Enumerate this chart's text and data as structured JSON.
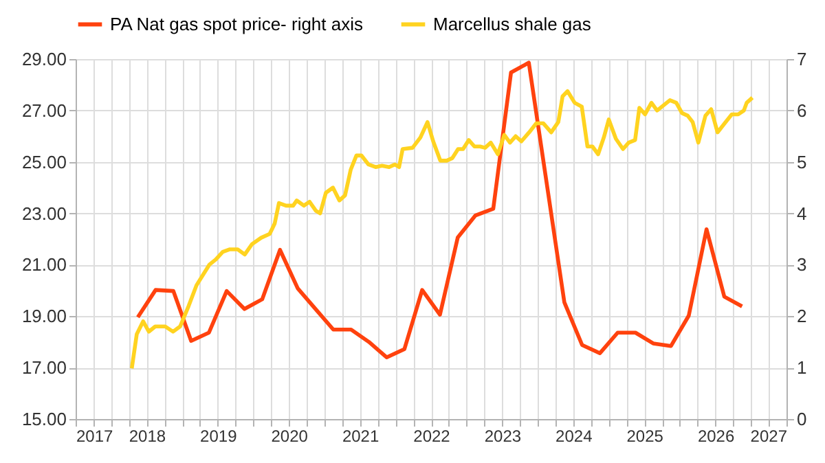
{
  "chart_data": {
    "type": "line",
    "xlim": [
      2017,
      2027
    ],
    "xticks": [
      2017,
      {
        "value": 2017.25,
        "label": null
      },
      {
        "value": 2017.5,
        "label": null
      },
      {
        "value": 2017.75,
        "label": null
      },
      2018,
      {
        "value": 2018.25,
        "label": null
      },
      {
        "value": 2018.5,
        "label": null
      },
      {
        "value": 2018.75,
        "label": null
      },
      2019,
      {
        "value": 2019.25,
        "label": null
      },
      {
        "value": 2019.5,
        "label": null
      },
      {
        "value": 2019.75,
        "label": null
      },
      2020,
      {
        "value": 2020.25,
        "label": null
      },
      {
        "value": 2020.5,
        "label": null
      },
      {
        "value": 2020.75,
        "label": null
      },
      2021,
      {
        "value": 2021.25,
        "label": null
      },
      {
        "value": 2021.5,
        "label": null
      },
      {
        "value": 2021.75,
        "label": null
      },
      2022,
      {
        "value": 2022.25,
        "label": null
      },
      {
        "value": 2022.5,
        "label": null
      },
      {
        "value": 2022.75,
        "label": null
      },
      2023,
      {
        "value": 2023.25,
        "label": null
      },
      {
        "value": 2023.5,
        "label": null
      },
      {
        "value": 2023.75,
        "label": null
      },
      2024,
      {
        "value": 2024.25,
        "label": null
      },
      {
        "value": 2024.5,
        "label": null
      },
      {
        "value": 2024.75,
        "label": null
      },
      2025,
      {
        "value": 2025.25,
        "label": null
      },
      {
        "value": 2025.5,
        "label": null
      },
      {
        "value": 2025.75,
        "label": null
      },
      2026,
      {
        "value": 2026.25,
        "label": null
      },
      {
        "value": 2026.5,
        "label": null
      },
      {
        "value": 2026.75,
        "label": null
      },
      2027
    ],
    "ylim": [
      15,
      29
    ],
    "yticks": [
      {
        "value": 15,
        "label": "15.00"
      },
      {
        "value": 17,
        "label": "17.00"
      },
      {
        "value": 19,
        "label": "19.00"
      },
      {
        "value": 21,
        "label": "21.00"
      },
      {
        "value": 23,
        "label": "23.00"
      },
      {
        "value": 25,
        "label": "25.00"
      },
      {
        "value": 27,
        "label": "27.00"
      },
      {
        "value": 29,
        "label": "29.00"
      }
    ],
    "y2lim": [
      0,
      7
    ],
    "y2ticks": [
      0,
      1,
      2,
      3,
      4,
      5,
      6,
      7
    ],
    "grid": true,
    "legend": "top",
    "line_style": "solid",
    "marker": "none",
    "series": [
      {
        "name": "PA Nat gas spot price- right axis",
        "color": "#ff420e",
        "axis": "y2",
        "x": [
          2017.875,
          2018.125,
          2018.375,
          2018.625,
          2018.875,
          2019.125,
          2019.375,
          2019.625,
          2019.875,
          2020.125,
          2020.375,
          2020.625,
          2020.875,
          2021.125,
          2021.375,
          2021.625,
          2021.875,
          2022.125,
          2022.375,
          2022.625,
          2022.875,
          2023.125,
          2023.375,
          2023.875,
          2024.125,
          2024.375,
          2024.625,
          2024.875,
          2025.125,
          2025.375,
          2025.625,
          2025.875,
          2026.125,
          2026.375
        ],
        "values": [
          1.98,
          2.51,
          2.49,
          1.52,
          1.68,
          2.49,
          2.14,
          2.33,
          3.29,
          2.54,
          2.14,
          1.74,
          1.74,
          1.5,
          1.2,
          1.36,
          2.51,
          2.03,
          3.53,
          3.96,
          4.09,
          6.74,
          6.93,
          2.27,
          1.44,
          1.28,
          1.68,
          1.68,
          1.47,
          1.42,
          2.01,
          3.69,
          2.38,
          2.19
        ]
      },
      {
        "name": "Marcellus shale gas",
        "color": "#ffd320",
        "x": [
          2017.79,
          2017.86,
          2017.95,
          2018.03,
          2018.12,
          2018.26,
          2018.37,
          2018.47,
          2018.59,
          2018.7,
          2018.88,
          2018.97,
          2019.07,
          2019.17,
          2019.28,
          2019.38,
          2019.48,
          2019.61,
          2019.73,
          2019.8,
          2019.86,
          2019.96,
          2020.06,
          2020.11,
          2020.21,
          2020.29,
          2020.38,
          2020.44,
          2020.52,
          2020.62,
          2020.71,
          2020.79,
          2020.87,
          2020.95,
          2021.02,
          2021.12,
          2021.22,
          2021.31,
          2021.41,
          2021.49,
          2021.55,
          2021.6,
          2021.74,
          2021.85,
          2021.95,
          2022.03,
          2022.13,
          2022.22,
          2022.3,
          2022.38,
          2022.45,
          2022.53,
          2022.61,
          2022.69,
          2022.76,
          2022.84,
          2022.94,
          2023.03,
          2023.11,
          2023.19,
          2023.27,
          2023.38,
          2023.48,
          2023.58,
          2023.69,
          2023.79,
          2023.85,
          2023.92,
          2024.02,
          2024.12,
          2024.2,
          2024.27,
          2024.35,
          2024.43,
          2024.5,
          2024.6,
          2024.7,
          2024.78,
          2024.87,
          2024.93,
          2025.01,
          2025.1,
          2025.18,
          2025.36,
          2025.45,
          2025.53,
          2025.61,
          2025.68,
          2025.76,
          2025.86,
          2025.94,
          2026.03,
          2026.13,
          2026.23,
          2026.32,
          2026.4,
          2026.44,
          2026.52
        ],
        "values": [
          16.97,
          18.3,
          18.8,
          18.4,
          18.6,
          18.6,
          18.4,
          18.6,
          19.4,
          20.2,
          21.0,
          21.2,
          21.5,
          21.6,
          21.6,
          21.4,
          21.8,
          22.05,
          22.2,
          22.6,
          23.4,
          23.3,
          23.3,
          23.5,
          23.3,
          23.45,
          23.1,
          23.0,
          23.8,
          24.0,
          23.5,
          23.7,
          24.7,
          25.25,
          25.25,
          24.9,
          24.8,
          24.85,
          24.8,
          24.9,
          24.8,
          25.5,
          25.55,
          25.95,
          26.55,
          25.8,
          25.05,
          25.05,
          25.15,
          25.5,
          25.5,
          25.85,
          25.6,
          25.6,
          25.55,
          25.75,
          25.3,
          26.05,
          25.75,
          26.0,
          25.8,
          26.15,
          26.5,
          26.5,
          26.15,
          26.55,
          27.55,
          27.75,
          27.3,
          27.15,
          25.6,
          25.6,
          25.3,
          25.95,
          26.65,
          25.9,
          25.5,
          25.75,
          25.85,
          27.1,
          26.85,
          27.3,
          27.0,
          27.4,
          27.3,
          26.9,
          26.8,
          26.55,
          25.75,
          26.8,
          27.05,
          26.15,
          26.5,
          26.85,
          26.85,
          27.0,
          27.3,
          27.5
        ]
      }
    ]
  }
}
